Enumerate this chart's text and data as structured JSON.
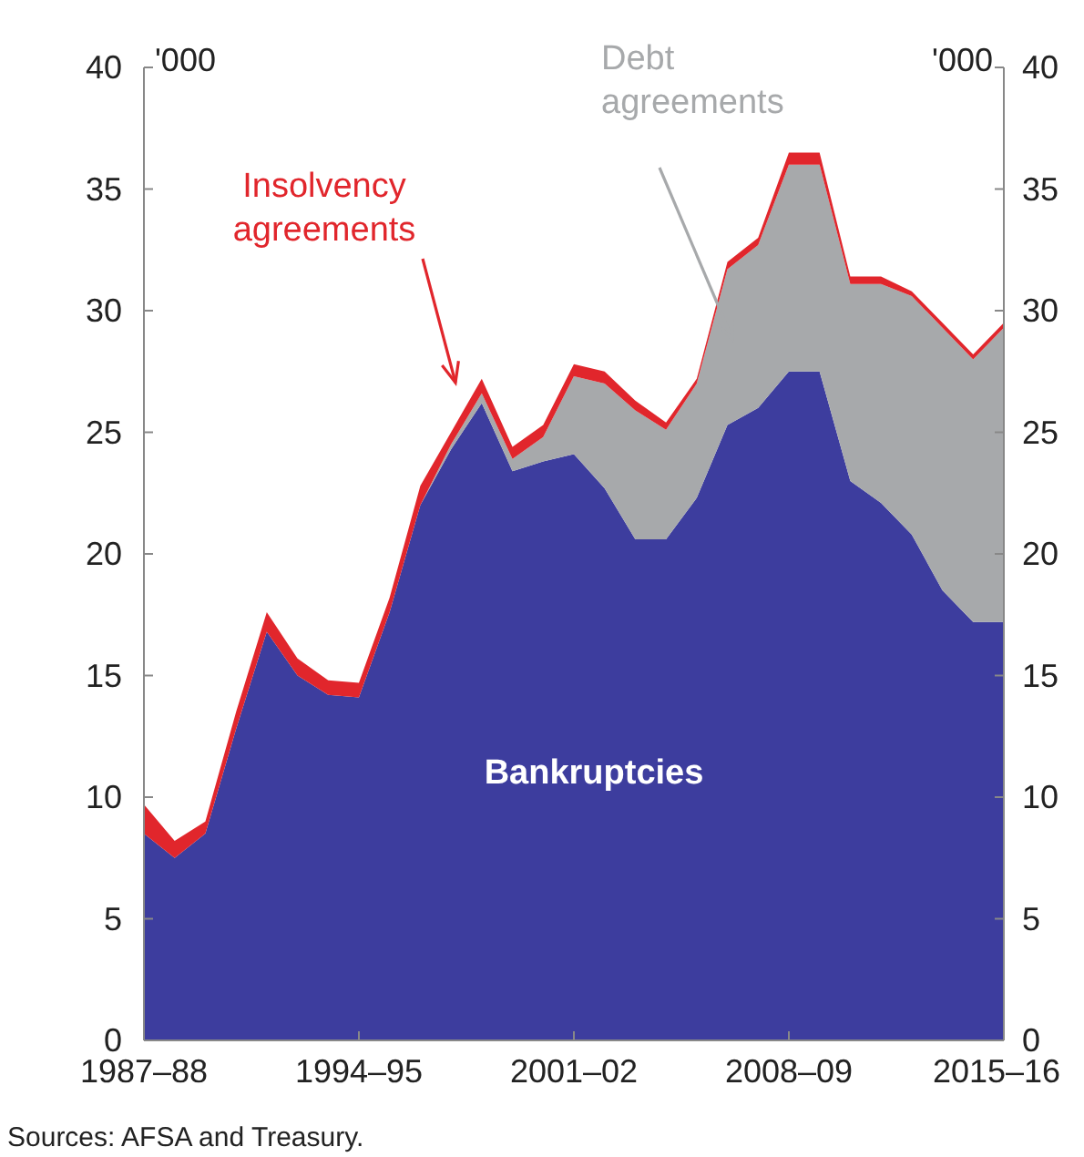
{
  "chart_data": {
    "type": "area",
    "stacked": true,
    "categories": [
      "1987–88",
      null,
      null,
      null,
      null,
      null,
      null,
      "1994–95",
      null,
      null,
      null,
      null,
      null,
      null,
      "2001–02",
      null,
      null,
      null,
      null,
      null,
      null,
      "2008–09",
      null,
      null,
      null,
      null,
      null,
      null,
      "2015–16"
    ],
    "ylabel": "'000",
    "y2label": "'000",
    "ylim": [
      0,
      40
    ],
    "yticks": [
      0,
      5,
      10,
      15,
      20,
      25,
      30,
      35,
      40
    ],
    "y2lim": [
      0,
      40
    ],
    "y2ticks": [
      0,
      5,
      10,
      15,
      20,
      25,
      30,
      35,
      40
    ],
    "series": [
      {
        "name": "Bankruptcies",
        "color": "#3d3d9e",
        "values": [
          8.5,
          7.5,
          8.5,
          12.8,
          16.8,
          15.0,
          14.2,
          14.1,
          17.6,
          22.0,
          24.3,
          26.2,
          23.4,
          23.8,
          24.1,
          22.7,
          20.6,
          20.6,
          22.3,
          25.3,
          26.0,
          27.5,
          27.5,
          23.0,
          22.1,
          20.8,
          18.5,
          17.2,
          17.2
        ]
      },
      {
        "name": "Debt agreements",
        "color": "#a7a9ab",
        "values": [
          0,
          0,
          0,
          0,
          0,
          0,
          0,
          0,
          0,
          0,
          0.2,
          0.4,
          0.5,
          1.0,
          3.2,
          4.3,
          5.3,
          4.5,
          4.7,
          6.4,
          6.7,
          8.5,
          8.5,
          8.1,
          9.0,
          9.8,
          10.8,
          10.8,
          12.1
        ]
      },
      {
        "name": "Insolvency agreements",
        "color": "#e1262c",
        "values": [
          1.2,
          0.7,
          0.5,
          0.7,
          0.8,
          0.7,
          0.6,
          0.6,
          0.6,
          0.8,
          0.5,
          0.6,
          0.5,
          0.5,
          0.5,
          0.5,
          0.4,
          0.3,
          0.2,
          0.3,
          0.3,
          0.5,
          0.5,
          0.3,
          0.3,
          0.2,
          0.2,
          0.2,
          0.2
        ]
      }
    ],
    "annotations": [
      "Sources: AFSA and Treasury."
    ]
  }
}
